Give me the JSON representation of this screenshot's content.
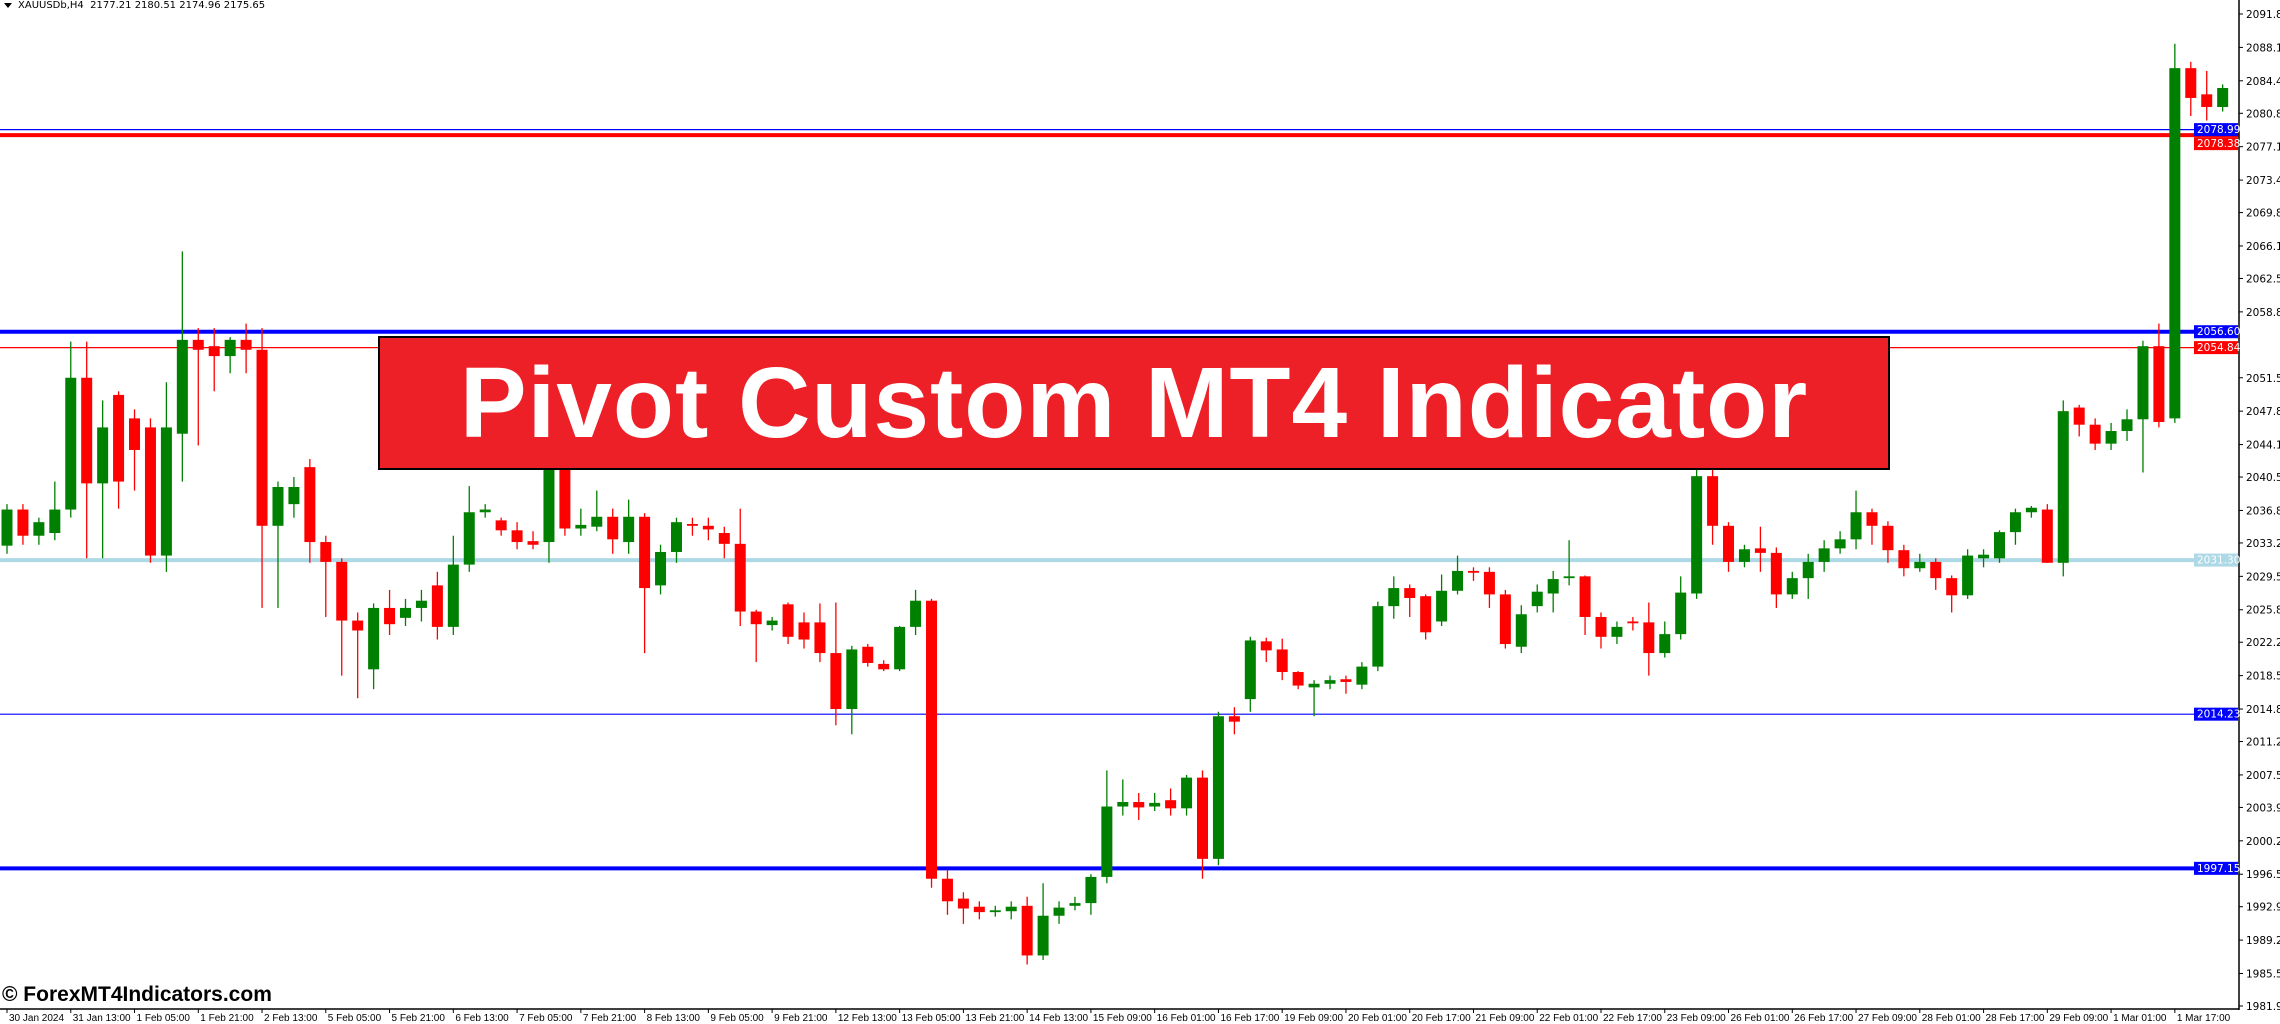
{
  "header": {
    "symbol": "XAUUSDb,H4",
    "ohlc": "2177.21 2180.51 2174.96 2175.65"
  },
  "banner": {
    "title": "Pivot Custom MT4 Indicator",
    "color": "#ed1f27"
  },
  "watermark": "© ForexMT4Indicators.com",
  "chart_data": {
    "type": "candlestick",
    "symbol": "XAUUSDb",
    "timeframe": "H4",
    "ylim": [
      1981.9,
      2091.8
    ],
    "grid": false,
    "colors": {
      "bull": "#008000",
      "bear": "#ff0000"
    },
    "y_ticks": [
      "2091.80",
      "2088.10",
      "2084.40",
      "2080.80",
      "2077.10",
      "2073.40",
      "2069.80",
      "2066.10",
      "2062.50",
      "2058.80",
      "2051.50",
      "2047.80",
      "2044.10",
      "2040.50",
      "2036.80",
      "2033.20",
      "2029.50",
      "2025.80",
      "2022.20",
      "2018.50",
      "2014.80",
      "2011.20",
      "2007.50",
      "2003.90",
      "2000.20",
      "1996.50",
      "1992.90",
      "1989.20",
      "1985.50",
      "1981.90"
    ],
    "x_ticks": [
      "30 Jan 2024",
      "31 Jan 13:00",
      "1 Feb 05:00",
      "1 Feb 21:00",
      "2 Feb 13:00",
      "5 Feb 05:00",
      "5 Feb 21:00",
      "6 Feb 13:00",
      "7 Feb 05:00",
      "7 Feb 21:00",
      "8 Feb 13:00",
      "9 Feb 05:00",
      "9 Feb 21:00",
      "12 Feb 13:00",
      "13 Feb 05:00",
      "13 Feb 21:00",
      "14 Feb 13:00",
      "15 Feb 09:00",
      "16 Feb 01:00",
      "16 Feb 17:00",
      "19 Feb 09:00",
      "20 Feb 01:00",
      "20 Feb 17:00",
      "21 Feb 09:00",
      "22 Feb 01:00",
      "22 Feb 17:00",
      "23 Feb 09:00",
      "26 Feb 01:00",
      "26 Feb 17:00",
      "27 Feb 09:00",
      "28 Feb 01:00",
      "28 Feb 17:00",
      "29 Feb 09:00",
      "1 Mar 01:00",
      "1 Mar 17:00"
    ],
    "x_tick_every_bars": 4,
    "levels": [
      {
        "price": 2078.99,
        "label": "2078.99",
        "color": "#0000ff",
        "thick": false
      },
      {
        "price": 2078.38,
        "label": "2078.38",
        "color": "#ff0000",
        "thick": true
      },
      {
        "price": 2056.6,
        "label": "2056.60",
        "color": "#0000ff",
        "thick": true
      },
      {
        "price": 2054.84,
        "label": "2054.84",
        "color": "#ff0000",
        "thick": false
      },
      {
        "price": 2031.3,
        "label": "2031.30",
        "color": "#add8e6",
        "thick": true
      },
      {
        "price": 2014.23,
        "label": "2014.23",
        "color": "#0000ff",
        "thick": false
      },
      {
        "price": 1997.15,
        "label": "1997.15",
        "color": "#0000ff",
        "thick": true
      }
    ],
    "ohlc": [
      [
        2032.9,
        2037.5,
        2032,
        2036.9
      ],
      [
        2036.9,
        2037.5,
        2033,
        2034
      ],
      [
        2034,
        2036,
        2033,
        2035.5
      ],
      [
        2034.3,
        2040,
        2033.5,
        2036.9
      ],
      [
        2036.9,
        2055.5,
        2036,
        2051.5
      ],
      [
        2051.5,
        2055.5,
        2031.5,
        2039.8
      ],
      [
        2039.8,
        2049,
        2031.5,
        2046
      ],
      [
        2049.6,
        2050,
        2037,
        2040
      ],
      [
        2047,
        2048,
        2039,
        2043.5
      ],
      [
        2046,
        2047,
        2031,
        2031.8
      ],
      [
        2031.8,
        2051,
        2030,
        2046
      ],
      [
        2045.3,
        2065.5,
        2040,
        2055.7
      ],
      [
        2055.7,
        2057,
        2044,
        2054.6
      ],
      [
        2055,
        2057,
        2050,
        2053.9
      ],
      [
        2053.9,
        2056,
        2052,
        2055.7
      ],
      [
        2055.7,
        2057.5,
        2052,
        2054.6
      ],
      [
        2054.6,
        2057,
        2026,
        2035.1
      ],
      [
        2035.1,
        2040,
        2026,
        2039.4
      ],
      [
        2037.5,
        2040.5,
        2036,
        2039.4
      ],
      [
        2041.6,
        2042.5,
        2031,
        2033.3
      ],
      [
        2033.3,
        2034,
        2025,
        2031.1
      ],
      [
        2031.1,
        2031.5,
        2018.5,
        2024.6
      ],
      [
        2024.6,
        2025.5,
        2016,
        2023.5
      ],
      [
        2019.2,
        2026.5,
        2017,
        2026
      ],
      [
        2026,
        2028,
        2023,
        2024.2
      ],
      [
        2024.9,
        2027,
        2024,
        2026
      ],
      [
        2026,
        2028,
        2024.5,
        2026.8
      ],
      [
        2028.5,
        2030,
        2022.5,
        2023.9
      ],
      [
        2023.9,
        2034,
        2023,
        2030.8
      ],
      [
        2030.8,
        2039.5,
        2030,
        2036.6
      ],
      [
        2036.6,
        2037.5,
        2036,
        2036.9
      ],
      [
        2035.7,
        2036,
        2034,
        2034.6
      ],
      [
        2034.6,
        2035.5,
        2032.5,
        2033.3
      ],
      [
        2033.4,
        2034.5,
        2032.5,
        2033
      ],
      [
        2033.3,
        2047,
        2031,
        2043
      ],
      [
        2043,
        2045,
        2034,
        2034.8
      ],
      [
        2034.8,
        2037,
        2034,
        2035.2
      ],
      [
        2035,
        2039,
        2034.5,
        2036.1
      ],
      [
        2036.1,
        2037,
        2032,
        2033.6
      ],
      [
        2033.3,
        2038,
        2032,
        2036.1
      ],
      [
        2036.1,
        2036.5,
        2021,
        2028.2
      ],
      [
        2028.5,
        2033,
        2027.5,
        2032.2
      ],
      [
        2032.2,
        2036,
        2031,
        2035.5
      ],
      [
        2035.3,
        2036,
        2034,
        2035.1
      ],
      [
        2035.1,
        2036,
        2033.5,
        2034.7
      ],
      [
        2034.3,
        2035,
        2031.5,
        2033.1
      ],
      [
        2033.1,
        2037,
        2024,
        2025.6
      ],
      [
        2025.6,
        2025.8,
        2020,
        2024.2
      ],
      [
        2024.1,
        2025,
        2023.5,
        2024.6
      ],
      [
        2026.4,
        2026.6,
        2022,
        2022.8
      ],
      [
        2024.4,
        2025.5,
        2021.5,
        2022.5
      ],
      [
        2024.4,
        2026.5,
        2020,
        2021
      ],
      [
        2021,
        2026.6,
        2013,
        2014.8
      ],
      [
        2014.8,
        2021.8,
        2012,
        2021.4
      ],
      [
        2021.7,
        2022,
        2019.5,
        2019.9
      ],
      [
        2019.8,
        2020.2,
        2019,
        2019.2
      ],
      [
        2019.2,
        2024,
        2019,
        2023.9
      ],
      [
        2023.9,
        2028,
        2023,
        2026.8
      ],
      [
        2026.8,
        2027,
        1995,
        1996
      ],
      [
        1996,
        1997,
        1992,
        1993.5
      ],
      [
        1993.8,
        1994.5,
        1991,
        1992.7
      ],
      [
        1992.9,
        1993.5,
        1991.5,
        1992.3
      ],
      [
        1992.3,
        1993,
        1991.8,
        1992.5
      ],
      [
        1992.4,
        1993.5,
        1991.5,
        1992.9
      ],
      [
        1993,
        1994,
        1986.5,
        1987.5
      ],
      [
        1987.5,
        1995.5,
        1987,
        1991.9
      ],
      [
        1991.9,
        1993.5,
        1991,
        1992.8
      ],
      [
        1993,
        1994,
        1992.5,
        1993.3
      ],
      [
        1993.3,
        1996.5,
        1992,
        1996.2
      ],
      [
        1996.2,
        2008,
        1995.5,
        2004
      ],
      [
        2004,
        2007,
        2003,
        2004.5
      ],
      [
        2004.5,
        2005.5,
        2002.5,
        2003.9
      ],
      [
        2004,
        2005.5,
        2003.5,
        2004.4
      ],
      [
        2004.7,
        2006,
        2003,
        2003.8
      ],
      [
        2003.8,
        2007.5,
        2003,
        2007.2
      ],
      [
        2007.2,
        2008,
        1996,
        1998.2
      ],
      [
        1998.2,
        2014.5,
        1997.5,
        2014
      ],
      [
        2014,
        2015,
        2012,
        2013.4
      ],
      [
        2015.9,
        2022.8,
        2014.5,
        2022.4
      ],
      [
        2022.3,
        2022.7,
        2020,
        2021.3
      ],
      [
        2021.4,
        2022.6,
        2018,
        2018.9
      ],
      [
        2018.9,
        2019,
        2017,
        2017.4
      ],
      [
        2017.2,
        2018,
        2014,
        2017.6
      ],
      [
        2017.6,
        2018.5,
        2017,
        2018
      ],
      [
        2018.1,
        2018.5,
        2016.5,
        2017.8
      ],
      [
        2017.5,
        2020,
        2017,
        2019.5
      ],
      [
        2019.5,
        2026.7,
        2019,
        2026.2
      ],
      [
        2026.2,
        2029.5,
        2024.8,
        2028.2
      ],
      [
        2028.2,
        2028.6,
        2025,
        2027.1
      ],
      [
        2027.3,
        2027.5,
        2022.5,
        2023.3
      ],
      [
        2024.5,
        2029.7,
        2024,
        2027.9
      ],
      [
        2027.9,
        2031.8,
        2027.5,
        2030.1
      ],
      [
        2030.1,
        2030.5,
        2029,
        2029.9
      ],
      [
        2030,
        2030.5,
        2026,
        2027.5
      ],
      [
        2027.5,
        2028,
        2021.5,
        2022
      ],
      [
        2021.7,
        2026.3,
        2021,
        2025.3
      ],
      [
        2026.2,
        2028.6,
        2025.5,
        2027.8
      ],
      [
        2027.6,
        2030.1,
        2025.5,
        2029.2
      ],
      [
        2029.3,
        2033.5,
        2028.5,
        2029.5
      ],
      [
        2029.5,
        2029.6,
        2023,
        2025
      ],
      [
        2025,
        2025.5,
        2021.5,
        2022.8
      ],
      [
        2022.8,
        2024.5,
        2022,
        2023.9
      ],
      [
        2024.5,
        2025,
        2023.5,
        2024.3
      ],
      [
        2024.4,
        2026.6,
        2018.5,
        2021
      ],
      [
        2021,
        2024.5,
        2020.5,
        2023.1
      ],
      [
        2023.1,
        2029.5,
        2022.5,
        2027.7
      ],
      [
        2027.6,
        2042,
        2027,
        2040.6
      ],
      [
        2040.6,
        2041.5,
        2033,
        2035.1
      ],
      [
        2035.1,
        2035.5,
        2030,
        2031.1
      ],
      [
        2031.1,
        2033,
        2030.5,
        2032.5
      ],
      [
        2032.6,
        2035,
        2030,
        2032.1
      ],
      [
        2032.1,
        2032.7,
        2026,
        2027.5
      ],
      [
        2027.5,
        2030,
        2027,
        2029.3
      ],
      [
        2029.3,
        2032,
        2027,
        2031.1
      ],
      [
        2031.1,
        2033.5,
        2030,
        2032.6
      ],
      [
        2032.6,
        2034.5,
        2032,
        2033.6
      ],
      [
        2033.6,
        2039,
        2032.5,
        2036.6
      ],
      [
        2036.6,
        2037,
        2033,
        2035.1
      ],
      [
        2035.1,
        2035.6,
        2031,
        2032.4
      ],
      [
        2032.4,
        2033,
        2029.5,
        2030.4
      ],
      [
        2030.4,
        2032,
        2030,
        2031.1
      ],
      [
        2031.1,
        2031.5,
        2028,
        2029.3
      ],
      [
        2029.3,
        2029.6,
        2025.5,
        2027.4
      ],
      [
        2027.4,
        2032.5,
        2027,
        2031.8
      ],
      [
        2031.5,
        2032.5,
        2030.5,
        2031.9
      ],
      [
        2031.5,
        2034.6,
        2031,
        2034.4
      ],
      [
        2034.4,
        2037,
        2033,
        2036.6
      ],
      [
        2036.6,
        2037.3,
        2036,
        2037.1
      ],
      [
        2036.9,
        2037.5,
        2031,
        2031
      ],
      [
        2031,
        2049,
        2029.5,
        2047.8
      ],
      [
        2048.2,
        2048.5,
        2045,
        2046.3
      ],
      [
        2046.3,
        2047,
        2043.5,
        2044.2
      ],
      [
        2044.2,
        2046.5,
        2043.5,
        2045.6
      ],
      [
        2045.6,
        2048,
        2044.5,
        2046.9
      ],
      [
        2046.9,
        2055.6,
        2041,
        2055
      ],
      [
        2055,
        2057.5,
        2046,
        2046.6
      ],
      [
        2047,
        2088.5,
        2046.5,
        2085.8
      ],
      [
        2085.8,
        2086.5,
        2080.5,
        2082.5
      ],
      [
        2082.9,
        2085.5,
        2080,
        2081.5
      ],
      [
        2081.5,
        2084,
        2081,
        2083.6
      ]
    ]
  }
}
